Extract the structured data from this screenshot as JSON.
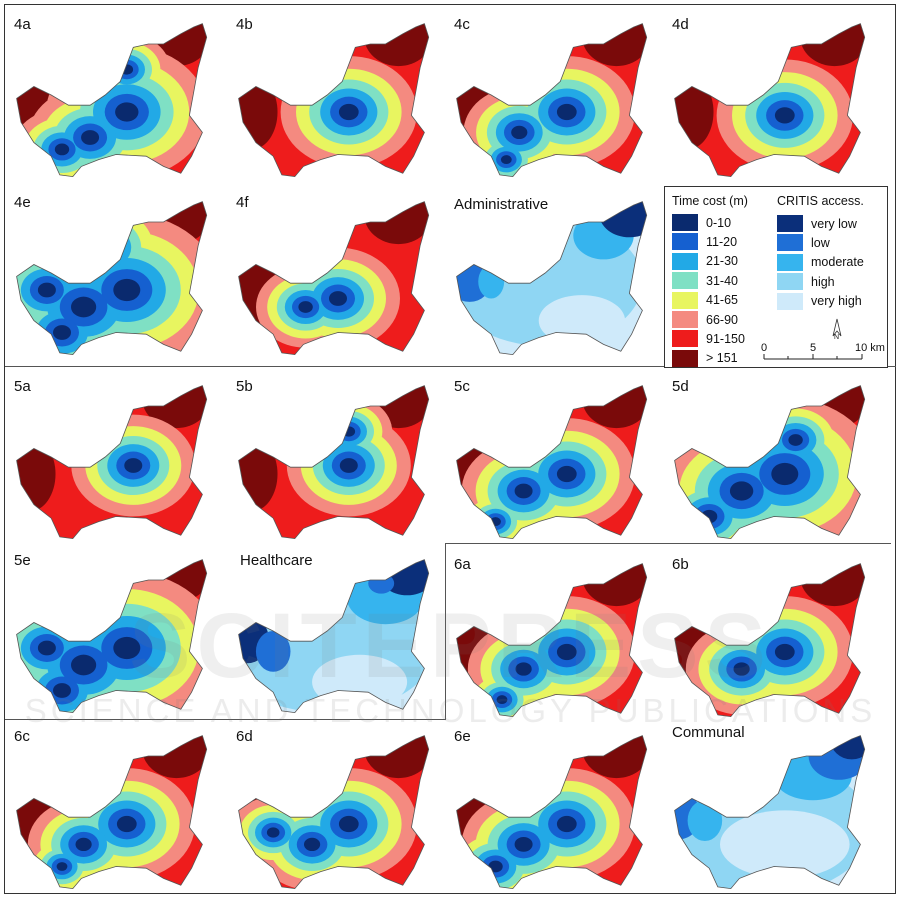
{
  "panels": [
    {
      "id": "4a",
      "label": "4a",
      "kind": "cost",
      "blobs": [
        [
          0.55,
          0.6,
          1.3
        ],
        [
          0.38,
          0.75,
          1.0
        ],
        [
          0.25,
          0.82,
          0.8
        ],
        [
          0.55,
          0.35,
          0.7
        ]
      ]
    },
    {
      "id": "4b",
      "label": "4b",
      "kind": "cost",
      "blobs": [
        [
          0.55,
          0.6,
          1.1
        ]
      ]
    },
    {
      "id": "4c",
      "label": "4c",
      "kind": "cost",
      "blobs": [
        [
          0.55,
          0.6,
          1.1
        ],
        [
          0.33,
          0.72,
          0.9
        ],
        [
          0.27,
          0.88,
          0.6
        ]
      ]
    },
    {
      "id": "4d",
      "label": "4d",
      "kind": "cost",
      "blobs": [
        [
          0.55,
          0.62,
          1.1
        ]
      ]
    },
    {
      "id": "4e",
      "label": "4e",
      "kind": "cost",
      "blobs": [
        [
          0.55,
          0.6,
          1.5
        ],
        [
          0.35,
          0.7,
          1.4
        ],
        [
          0.18,
          0.6,
          1.0
        ],
        [
          0.45,
          0.35,
          1.0
        ],
        [
          0.25,
          0.85,
          1.0
        ]
      ]
    },
    {
      "id": "4f",
      "label": "4f",
      "kind": "cost",
      "blobs": [
        [
          0.5,
          0.65,
          1.0
        ],
        [
          0.35,
          0.7,
          0.8
        ]
      ]
    },
    {
      "id": "adm",
      "label": "Administrative",
      "kind": "access",
      "scheme": "adm"
    },
    {
      "id": "5a",
      "label": "5a",
      "kind": "cost",
      "blobs": [
        [
          0.58,
          0.55,
          1.0
        ]
      ]
    },
    {
      "id": "5b",
      "label": "5b",
      "kind": "cost",
      "blobs": [
        [
          0.55,
          0.55,
          1.0
        ],
        [
          0.55,
          0.35,
          0.7
        ]
      ]
    },
    {
      "id": "5c",
      "label": "5c",
      "kind": "cost",
      "blobs": [
        [
          0.55,
          0.6,
          1.1
        ],
        [
          0.35,
          0.7,
          1.0
        ],
        [
          0.22,
          0.88,
          0.6
        ]
      ]
    },
    {
      "id": "5d",
      "label": "5d",
      "kind": "cost",
      "blobs": [
        [
          0.55,
          0.6,
          1.5
        ],
        [
          0.35,
          0.7,
          1.3
        ],
        [
          0.2,
          0.85,
          0.9
        ],
        [
          0.6,
          0.4,
          0.8
        ]
      ]
    },
    {
      "id": "5e",
      "label": "5e",
      "kind": "cost",
      "blobs": [
        [
          0.55,
          0.6,
          1.5
        ],
        [
          0.35,
          0.7,
          1.4
        ],
        [
          0.18,
          0.6,
          1.0
        ],
        [
          0.25,
          0.85,
          1.0
        ]
      ]
    },
    {
      "id": "hc",
      "label": "Healthcare",
      "kind": "access",
      "scheme": "hc"
    },
    {
      "id": "6a",
      "label": "6a",
      "kind": "cost",
      "blobs": [
        [
          0.55,
          0.6,
          1.1
        ],
        [
          0.35,
          0.7,
          0.9
        ],
        [
          0.25,
          0.88,
          0.6
        ]
      ]
    },
    {
      "id": "6b",
      "label": "6b",
      "kind": "cost",
      "blobs": [
        [
          0.55,
          0.6,
          1.1
        ],
        [
          0.35,
          0.7,
          0.9
        ]
      ]
    },
    {
      "id": "6c",
      "label": "6c",
      "kind": "cost",
      "blobs": [
        [
          0.55,
          0.6,
          1.1
        ],
        [
          0.35,
          0.72,
          0.9
        ],
        [
          0.25,
          0.85,
          0.6
        ]
      ]
    },
    {
      "id": "6d",
      "label": "6d",
      "kind": "cost",
      "blobs": [
        [
          0.55,
          0.6,
          1.1
        ],
        [
          0.38,
          0.72,
          0.9
        ],
        [
          0.2,
          0.65,
          0.7
        ]
      ]
    },
    {
      "id": "6e",
      "label": "6e",
      "kind": "cost",
      "blobs": [
        [
          0.55,
          0.6,
          1.1
        ],
        [
          0.35,
          0.72,
          1.0
        ],
        [
          0.22,
          0.85,
          0.8
        ]
      ]
    },
    {
      "id": "com",
      "label": "Communal",
      "kind": "access",
      "scheme": "com"
    }
  ],
  "legend": {
    "time_title": "Time cost (m)",
    "time_classes": [
      {
        "label": "0-10",
        "color": "#0a2a6e"
      },
      {
        "label": "11-20",
        "color": "#1560d0"
      },
      {
        "label": "21-30",
        "color": "#22a9e6"
      },
      {
        "label": "31-40",
        "color": "#7fe0c4"
      },
      {
        "label": "41-65",
        "color": "#e8f560"
      },
      {
        "label": "66-90",
        "color": "#f48a80"
      },
      {
        "label": "91-150",
        "color": "#ee1c1c"
      },
      {
        "label": "> 151",
        "color": "#7a0a0a"
      }
    ],
    "access_title": "CRITIS access.",
    "access_classes": [
      {
        "label": "very low",
        "color": "#0b2f7a"
      },
      {
        "label": "low",
        "color": "#1f6fd6"
      },
      {
        "label": "moderate",
        "color": "#36b4ee"
      },
      {
        "label": "high",
        "color": "#8fd6f3"
      },
      {
        "label": "very high",
        "color": "#cfeafa"
      }
    ],
    "north_label": "N",
    "scale_labels": [
      "0",
      "5",
      "10 km"
    ]
  },
  "watermark": {
    "main": "SCITEPRESS",
    "sub": "SCIENCE AND TECHNOLOGY PUBLICATIONS"
  }
}
